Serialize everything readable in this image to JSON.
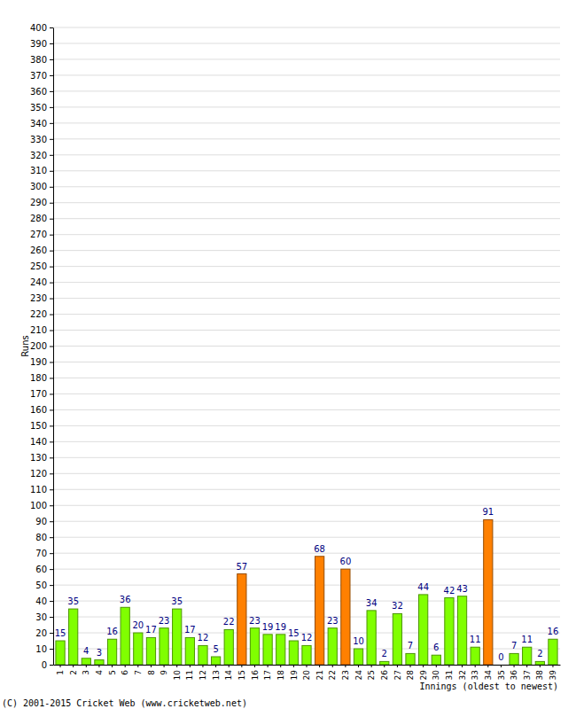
{
  "chart_data": {
    "type": "bar",
    "x_label": "Innings (oldest to newest)",
    "y_label": "Runs",
    "annotations": [
      "(C) 2001-2015 Cricket Web (www.cricketweb.net)"
    ],
    "categories": [
      "1",
      "2",
      "3",
      "4",
      "5",
      "6",
      "7",
      "8",
      "9",
      "10",
      "11",
      "12",
      "13",
      "14",
      "15",
      "16",
      "17",
      "18",
      "19",
      "20",
      "21",
      "22",
      "23",
      "24",
      "25",
      "26",
      "27",
      "28",
      "29",
      "30",
      "31",
      "32",
      "33",
      "34",
      "35",
      "36",
      "37",
      "38",
      "39"
    ],
    "values": [
      15,
      35,
      4,
      3,
      16,
      36,
      20,
      17,
      23,
      35,
      17,
      12,
      5,
      22,
      57,
      23,
      19,
      19,
      15,
      12,
      68,
      23,
      60,
      10,
      34,
      2,
      32,
      7,
      44,
      6,
      42,
      43,
      11,
      91,
      0,
      7,
      11,
      2,
      16
    ],
    "colors": [
      "#80ff00",
      "#80ff00",
      "#80ff00",
      "#80ff00",
      "#80ff00",
      "#80ff00",
      "#80ff00",
      "#80ff00",
      "#80ff00",
      "#80ff00",
      "#80ff00",
      "#80ff00",
      "#80ff00",
      "#80ff00",
      "#ff8000",
      "#80ff00",
      "#80ff00",
      "#80ff00",
      "#80ff00",
      "#80ff00",
      "#ff8000",
      "#80ff00",
      "#ff8000",
      "#80ff00",
      "#80ff00",
      "#80ff00",
      "#80ff00",
      "#80ff00",
      "#80ff00",
      "#80ff00",
      "#80ff00",
      "#80ff00",
      "#80ff00",
      "#ff8000",
      "#80ff00",
      "#80ff00",
      "#80ff00",
      "#80ff00",
      "#80ff00"
    ],
    "ylim": [
      0,
      400
    ],
    "yticks": [
      0,
      10,
      20,
      30,
      40,
      50,
      60,
      70,
      80,
      90,
      100,
      110,
      120,
      130,
      140,
      150,
      160,
      170,
      180,
      190,
      200,
      210,
      220,
      230,
      240,
      250,
      260,
      270,
      280,
      290,
      300,
      310,
      320,
      330,
      340,
      350,
      360,
      370,
      380,
      390,
      400
    ],
    "grid": true,
    "data_labels": true
  }
}
